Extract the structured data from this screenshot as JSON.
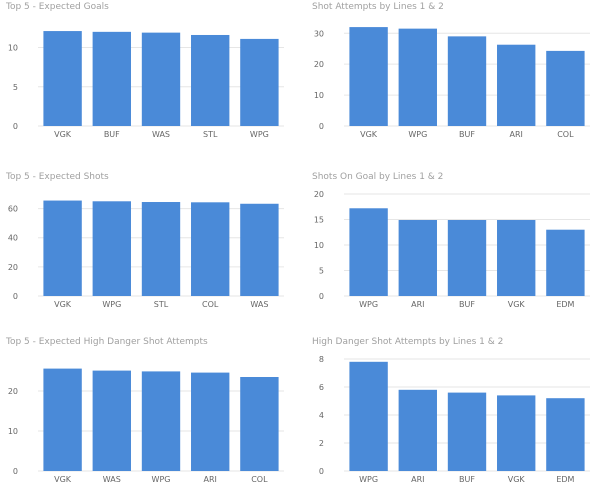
{
  "colors": {
    "bar": "#4a8ad8",
    "grid": "#e6e6e6",
    "text": "#666666",
    "title": "#a0a0a0"
  },
  "chart_data": [
    {
      "type": "bar",
      "title": "Top 5 - Expected Goals",
      "categories": [
        "VGK",
        "BUF",
        "WAS",
        "STL",
        "WPG"
      ],
      "values": [
        12.1,
        12.0,
        11.9,
        11.6,
        11.1
      ],
      "ylim": [
        0,
        13
      ],
      "yticks": [
        0,
        5,
        10
      ],
      "grid": true
    },
    {
      "type": "bar",
      "title": "Shot Attempts by Lines 1 & 2",
      "categories": [
        "VGK",
        "WPG",
        "BUF",
        "ARI",
        "COL"
      ],
      "values": [
        32,
        31.5,
        29,
        26.3,
        24.3
      ],
      "ylim": [
        0,
        33
      ],
      "yticks": [
        0,
        10,
        20,
        30
      ],
      "grid": true
    },
    {
      "type": "bar",
      "title": "Top 5 - Expected Shots",
      "categories": [
        "VGK",
        "WPG",
        "STL",
        "COL",
        "WAS"
      ],
      "values": [
        65.5,
        65,
        64.5,
        64.3,
        63.3
      ],
      "ylim": [
        0,
        70
      ],
      "yticks": [
        0,
        20,
        40,
        60
      ],
      "grid": true
    },
    {
      "type": "bar",
      "title": "Shots On Goal by Lines 1 & 2",
      "categories": [
        "WPG",
        "ARI",
        "BUF",
        "VGK",
        "EDM"
      ],
      "values": [
        17.2,
        14.9,
        14.9,
        14.9,
        13
      ],
      "ylim": [
        0,
        20
      ],
      "yticks": [
        0,
        5,
        10,
        15,
        20
      ],
      "grid": true
    },
    {
      "type": "bar",
      "title": "Top 5 - Expected High Danger Shot Attempts",
      "categories": [
        "VGK",
        "WAS",
        "WPG",
        "ARI",
        "COL"
      ],
      "values": [
        25.6,
        25.1,
        24.9,
        24.6,
        23.5
      ],
      "ylim": [
        0,
        28
      ],
      "yticks": [
        0,
        10,
        20
      ],
      "grid": true
    },
    {
      "type": "bar",
      "title": "High Danger Shot Attempts by Lines 1 & 2",
      "categories": [
        "WPG",
        "ARI",
        "BUF",
        "VGK",
        "EDM"
      ],
      "values": [
        7.8,
        5.8,
        5.6,
        5.4,
        5.2
      ],
      "ylim": [
        0,
        8
      ],
      "yticks": [
        0,
        2,
        4,
        6,
        8
      ],
      "grid": true
    }
  ]
}
